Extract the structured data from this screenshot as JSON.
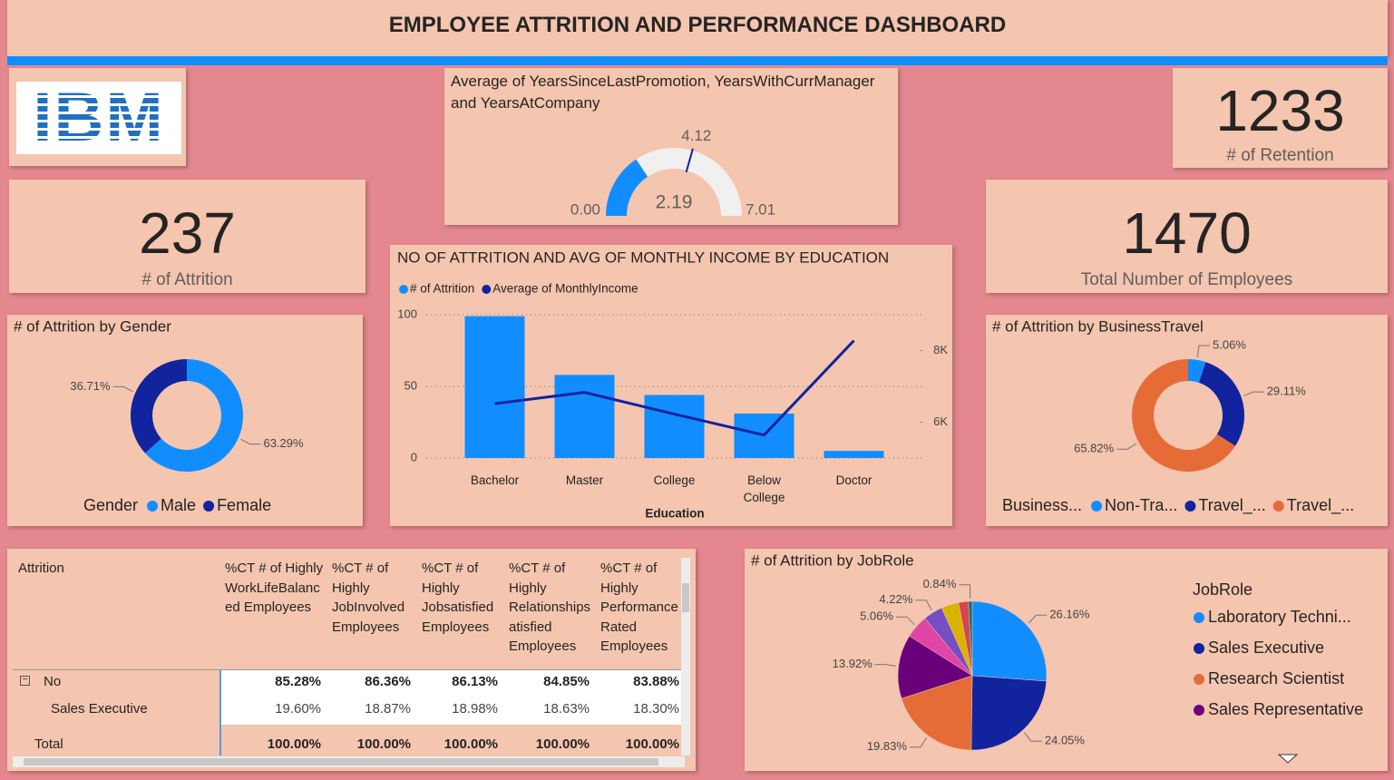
{
  "header": {
    "title": "EMPLOYEE ATTRITION AND PERFORMANCE DASHBOARD",
    "logo": "IBM"
  },
  "kpis": [
    {
      "value": 237,
      "label": "# of Attrition"
    },
    {
      "value": 1233,
      "label": "# of Retention"
    },
    {
      "value": 1470,
      "label": "Total Number of Employees"
    }
  ],
  "chart_data": [
    {
      "type": "gauge",
      "title": "Average of YearsSinceLastPromotion, YearsWithCurrManager and YearsAtCompany",
      "value": 2.19,
      "min": {
        "value": 0,
        "label": "0.00"
      },
      "max": 7.01,
      "target": 4.12,
      "color": "#118DFF",
      "track_color": "#F0F0F0",
      "target_color": "#12239E"
    },
    {
      "type": "bar_line",
      "title": "NO OF ATTRITION AND AVG OF MONTHLY INCOME BY EDUCATION",
      "x_label": "Education",
      "legend": "top-left",
      "grid": true,
      "categories": [
        "Bachelor",
        "Master",
        "College",
        "Below College",
        "Doctor"
      ],
      "series": [
        {
          "name": "# of Attrition",
          "color": "#118DFF",
          "kind": "bar",
          "values": [
            99,
            58,
            44,
            31,
            5
          ]
        },
        {
          "name": "Average of MonthlyIncome",
          "color": "#12239E",
          "kind": "line",
          "axis": "y2",
          "values": [
            6517.26,
            6832.4,
            6226.65,
            5640.57,
            8277.65
          ]
        }
      ],
      "ylim": [
        0,
        100
      ],
      "yticks": [
        0,
        50,
        100
      ],
      "y2lim": [
        5000,
        9000
      ],
      "y2ticks": [
        {
          "value": 6000,
          "label": "6K"
        },
        {
          "value": 8000,
          "label": "8K"
        }
      ]
    },
    {
      "type": "donut",
      "title": "# of Attrition by Gender",
      "legend_title": "Gender",
      "legend": "bottom",
      "categories": [
        "Male",
        "Female"
      ],
      "values": [
        63.29,
        36.71
      ],
      "value_labels": [
        "63.29%",
        "36.71%"
      ],
      "colors": [
        "#118DFF",
        "#12239E"
      ]
    },
    {
      "type": "donut",
      "title": "# of Attrition by BusinessTravel",
      "legend_title": "Business...",
      "legend": "bottom",
      "categories": [
        "Non-Tra...",
        "Travel_...",
        "Travel_..."
      ],
      "values": [
        5.06,
        29.11,
        65.82
      ],
      "value_labels": [
        "5.06%",
        "29.11%",
        "65.82%"
      ],
      "colors": [
        "#118DFF",
        "#12239E",
        "#E66C37"
      ]
    },
    {
      "type": "pie",
      "title": "# of Attrition by JobRole",
      "legend_title": "JobRole",
      "legend": "right",
      "categories": [
        "Laboratory Techni...",
        "Sales Executive",
        "Research Scientist",
        "Sales Representative",
        null,
        null,
        null,
        null,
        null
      ],
      "values": [
        26.16,
        24.05,
        19.83,
        13.92,
        5.06,
        4.22,
        3.8,
        2.11,
        0.84
      ],
      "value_labels": [
        "26.16%",
        "24.05%",
        "19.83%",
        "13.92%",
        "5.06%",
        "4.22%",
        null,
        null,
        "0.84%"
      ],
      "colors": [
        "#118DFF",
        "#12239E",
        "#E66C37",
        "#6B007B",
        "#E044A7",
        "#744EC2",
        "#D9B300",
        "#D64550",
        "#197278"
      ]
    }
  ],
  "table": {
    "columns": [
      "Attrition",
      "%CT # of Highly WorkLifeBalanced Employees",
      "%CT # of Highly JobInvolved Employees",
      "%CT # of Highly Jobsatisfied Employees",
      "%CT # of Highly Relationshipsatisfied Employees",
      "%CT # of Highly PerformanceRated Employees"
    ],
    "rows": [
      [
        "No",
        "85.28%",
        "86.36%",
        "86.13%",
        "84.85%",
        "83.88%"
      ],
      [
        "Sales Executive",
        "19.60%",
        "18.87%",
        "18.98%",
        "18.63%",
        "18.30%"
      ],
      [
        "Total",
        "100.00%",
        "100.00%",
        "100.00%",
        "100.00%",
        "100.00%"
      ]
    ]
  }
}
